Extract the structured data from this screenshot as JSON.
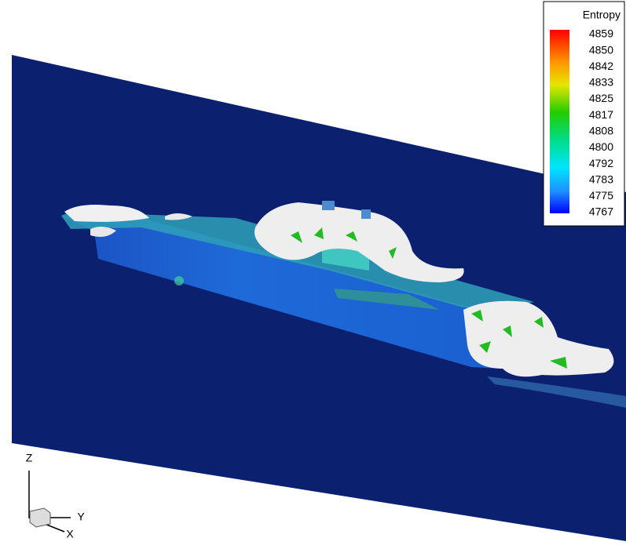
{
  "legend": {
    "title": "Entropy",
    "labels": [
      4859,
      4850,
      4842,
      4833,
      4825,
      4817,
      4808,
      4800,
      4792,
      4783,
      4775,
      4767
    ]
  },
  "axes": {
    "z": "Z",
    "y": "Y",
    "x": "X"
  }
}
